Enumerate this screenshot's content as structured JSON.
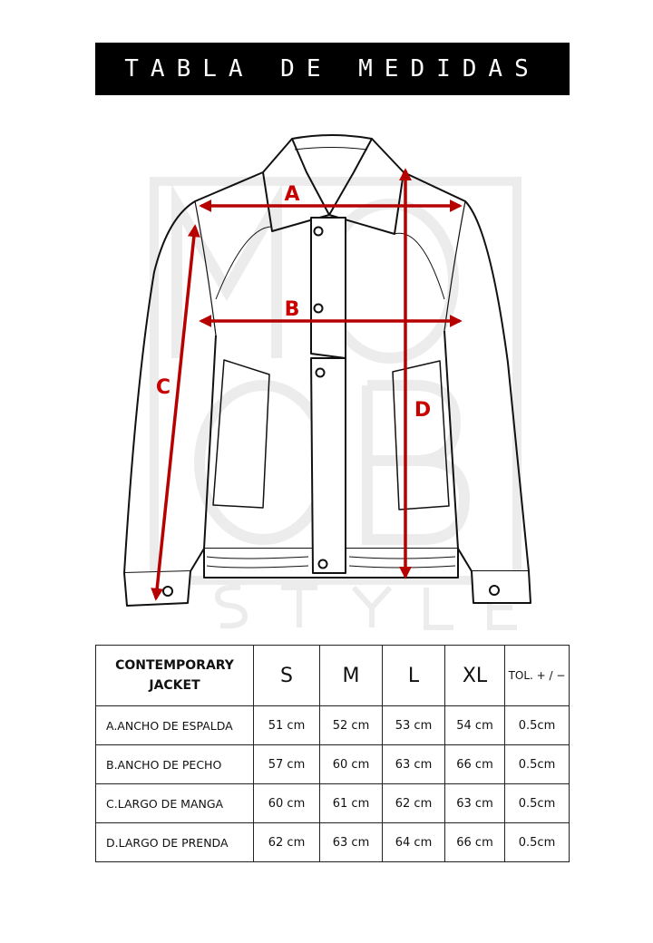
{
  "title": "TABLA DE MEDIDAS",
  "diagram": {
    "labels": {
      "a": "A",
      "b": "B",
      "c": "C",
      "d": "D"
    },
    "watermark": "MO OB STYLE",
    "arrow_color": "#b70000"
  },
  "table": {
    "header": {
      "product": "CONTEMPORARY JACKET",
      "sizes": [
        "S",
        "M",
        "L",
        "XL"
      ],
      "tolerance": "TOL. + / −"
    },
    "rows": [
      {
        "label": "A.ANCHO DE ESPALDA",
        "values": [
          "51 cm",
          "52 cm",
          "53 cm",
          "54 cm"
        ],
        "tol": "0.5cm"
      },
      {
        "label": "B.ANCHO DE PECHO",
        "values": [
          "57 cm",
          "60 cm",
          "63 cm",
          "66 cm"
        ],
        "tol": "0.5cm"
      },
      {
        "label": "C.LARGO DE MANGA",
        "values": [
          "60 cm",
          "61 cm",
          "62 cm",
          "63 cm"
        ],
        "tol": "0.5cm"
      },
      {
        "label": "D.LARGO DE PRENDA",
        "values": [
          "62 cm",
          "63 cm",
          "64 cm",
          "66 cm"
        ],
        "tol": "0.5cm"
      }
    ]
  }
}
